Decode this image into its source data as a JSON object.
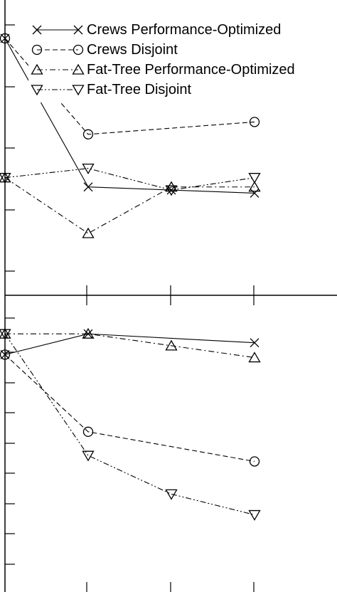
{
  "chart_data": [
    {
      "type": "line",
      "title": "",
      "xlabel": "",
      "ylabel": "",
      "x": [
        1,
        2,
        3,
        4
      ],
      "xlim": [
        0,
        5
      ],
      "ylim": [
        0,
        100
      ],
      "legend_position": "top",
      "series": [
        {
          "name": "Crews Performance-Optimized",
          "marker": "x",
          "dash": "solid",
          "values": [
            83,
            35,
            34,
            33
          ]
        },
        {
          "name": "Crews Disjoint",
          "marker": "circle",
          "dash": "dashed",
          "values": [
            83,
            52,
            null,
            56
          ]
        },
        {
          "name": "Fat-Tree Performance-Optimized",
          "marker": "triangle-up",
          "dash": "dashdot",
          "values": [
            38,
            20,
            35,
            35
          ]
        },
        {
          "name": "Fat-Tree Disjoint",
          "marker": "triangle-down",
          "dash": "dashdotdot",
          "values": [
            38,
            41,
            34,
            38
          ]
        }
      ]
    },
    {
      "type": "line",
      "title": "",
      "xlabel": "",
      "ylabel": "",
      "x": [
        1,
        2,
        3,
        4
      ],
      "xlim": [
        0,
        5
      ],
      "ylim": [
        0,
        100
      ],
      "series": [
        {
          "name": "Crews Performance-Optimized",
          "marker": "x",
          "dash": "solid",
          "values": [
            80,
            87,
            null,
            84
          ]
        },
        {
          "name": "Crews Disjoint",
          "marker": "circle",
          "dash": "dashed",
          "values": [
            80,
            54,
            null,
            44
          ]
        },
        {
          "name": "Fat-Tree Performance-Optimized",
          "marker": "triangle-up",
          "dash": "dashdot",
          "values": [
            87,
            87,
            83,
            79
          ]
        },
        {
          "name": "Fat-Tree Disjoint",
          "marker": "triangle-down",
          "dash": "dashdotdot",
          "values": [
            87,
            46,
            33,
            26
          ]
        }
      ]
    }
  ]
}
